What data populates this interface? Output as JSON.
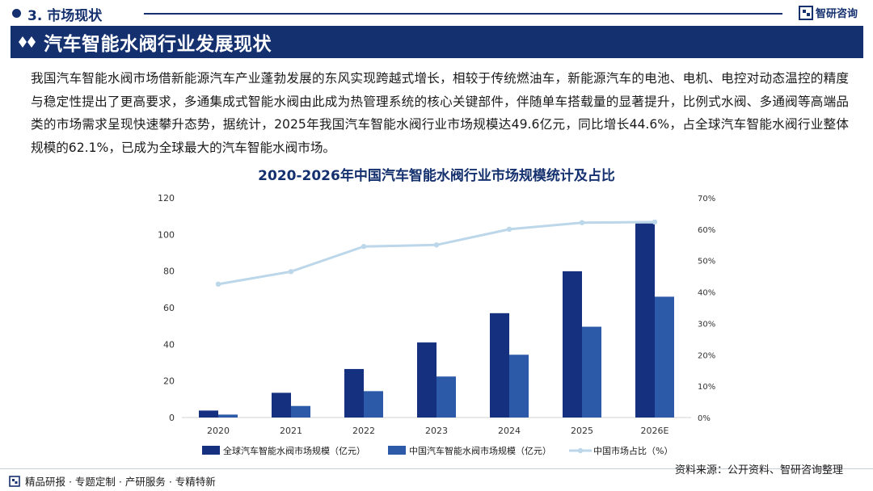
{
  "header": {
    "section": "3. 市场现状",
    "brand": "智研咨询"
  },
  "title": "汽车智能水阀行业发展现状",
  "body": "我国汽车智能水阀市场借新能源汽车产业蓬勃发展的东风实现跨越式增长，相较于传统燃油车，新能源汽车的电池、电机、电控对动态温控的精度与稳定性提出了更高要求，多通集成式智能水阀由此成为热管理系统的核心关键部件，伴随单车搭载量的显著提升，比例式水阀、多通阀等高端品类的市场需求呈现快速攀升态势，据统计，2025年我国汽车智能水阀行业市场规模达49.6亿元，同比增长44.6%，占全球汽车智能水阀行业整体规模的62.1%，已成为全球最大的汽车智能水阀市场。",
  "footer": {
    "left": "精品研报 · 专题定制 · 产研服务 · 专精特新",
    "source": "资料来源：公开资料、智研咨询整理"
  },
  "colors": {
    "navy": "#14306e",
    "global_bar": "#14307f",
    "china_bar": "#2d5aa8",
    "share_line": "#bcd6ea"
  },
  "chart_data": {
    "type": "bar",
    "title": "2020-2026年中国汽车智能水阀行业市场规模统计及占比",
    "categories": [
      "2020",
      "2021",
      "2022",
      "2023",
      "2024",
      "2025",
      "2026E"
    ],
    "series": [
      {
        "name": "全球汽车智能水阀市场规模（亿元）",
        "type": "bar",
        "axis": "left",
        "values": [
          3.8,
          13.5,
          26.5,
          41.0,
          57.0,
          79.9,
          106.0
        ]
      },
      {
        "name": "中国汽车智能水阀市场规模（亿元）",
        "type": "bar",
        "axis": "left",
        "values": [
          1.6,
          6.3,
          14.4,
          22.4,
          34.3,
          49.6,
          66.0
        ]
      },
      {
        "name": "中国市场占比（%）",
        "type": "line",
        "axis": "right",
        "values": [
          42.5,
          46.5,
          54.5,
          55.0,
          60.0,
          62.1,
          62.3
        ]
      }
    ],
    "y_left": {
      "min": 0,
      "max": 120,
      "ticks": [
        "0",
        "20",
        "40",
        "60",
        "80",
        "100",
        "120"
      ]
    },
    "y_right": {
      "min": 0,
      "max": 70,
      "ticks": [
        "0%",
        "10%",
        "20%",
        "30%",
        "40%",
        "50%",
        "60%",
        "70%"
      ]
    },
    "grid": false,
    "legend": "bottom"
  }
}
